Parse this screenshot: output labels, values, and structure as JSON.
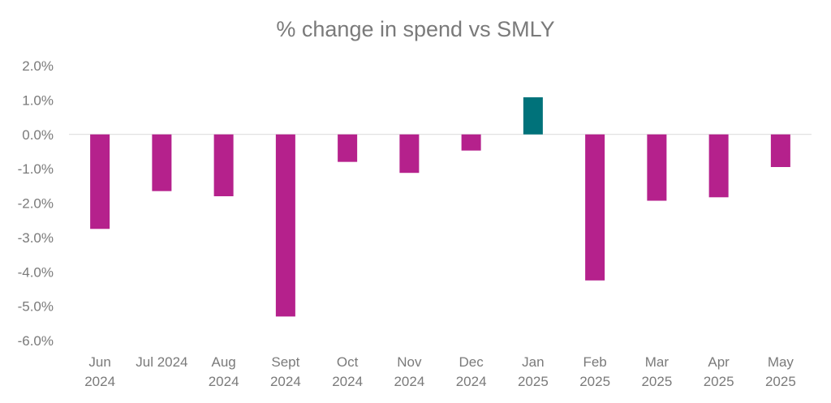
{
  "chart_data": {
    "type": "bar",
    "title": "% change in spend vs SMLY",
    "xlabel": "",
    "ylabel": "",
    "ylim": [
      -6,
      2
    ],
    "yticks": [
      2,
      1,
      0,
      -1,
      -2,
      -3,
      -4,
      -5,
      -6
    ],
    "ytick_labels": [
      "2.0%",
      "1.0%",
      "0.0%",
      "-1.0%",
      "-2.0%",
      "-3.0%",
      "-4.0%",
      "-5.0%",
      "-6.0%"
    ],
    "categories": [
      [
        "Jun",
        "2024"
      ],
      [
        "Jul 2024"
      ],
      [
        "Aug",
        "2024"
      ],
      [
        "Sept",
        "2024"
      ],
      [
        "Oct",
        "2024"
      ],
      [
        "Nov",
        "2024"
      ],
      [
        "Dec",
        "2024"
      ],
      [
        "Jan",
        "2025"
      ],
      [
        "Feb",
        "2025"
      ],
      [
        "Mar",
        "2025"
      ],
      [
        "Apr",
        "2025"
      ],
      [
        "May",
        "2025"
      ]
    ],
    "values": [
      -2.75,
      -1.65,
      -1.8,
      -5.3,
      -0.8,
      -1.12,
      -0.47,
      1.08,
      -4.25,
      -1.93,
      -1.83,
      -0.95
    ],
    "colors": {
      "negative": "#b5218c",
      "positive": "#00727a",
      "zero_line": "#d9d9d9",
      "text": "#7a7a7a"
    },
    "grid": false,
    "legend": "none"
  }
}
